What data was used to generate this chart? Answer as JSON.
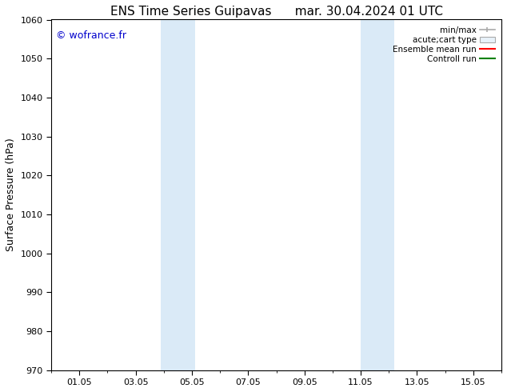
{
  "title_left": "ENS Time Series Guipavas",
  "title_right": "mar. 30.04.2024 01 UTC",
  "ylabel": "Surface Pressure (hPa)",
  "ylim": [
    970,
    1060
  ],
  "yticks": [
    970,
    980,
    990,
    1000,
    1010,
    1020,
    1030,
    1040,
    1050,
    1060
  ],
  "xtick_labels": [
    "01.05",
    "03.05",
    "05.05",
    "07.05",
    "09.05",
    "11.05",
    "13.05",
    "15.05"
  ],
  "xtick_positions": [
    1,
    3,
    5,
    7,
    9,
    11,
    13,
    15
  ],
  "xlim": [
    0,
    16
  ],
  "shaded_regions": [
    {
      "x_start": 3.9,
      "x_end": 5.1,
      "color": "#daeaf7"
    },
    {
      "x_start": 11.0,
      "x_end": 12.2,
      "color": "#daeaf7"
    }
  ],
  "watermark_text": "© wofrance.fr",
  "watermark_color": "#0000cc",
  "bg_color": "#ffffff",
  "legend_labels": [
    "min/max",
    "acute;cart type",
    "Ensemble mean run",
    "Controll run"
  ],
  "legend_colors": [
    "#aaaaaa",
    "#ccddee",
    "#ff0000",
    "#008000"
  ],
  "title_fontsize": 11,
  "axis_label_fontsize": 9,
  "tick_fontsize": 8,
  "legend_fontsize": 7.5
}
